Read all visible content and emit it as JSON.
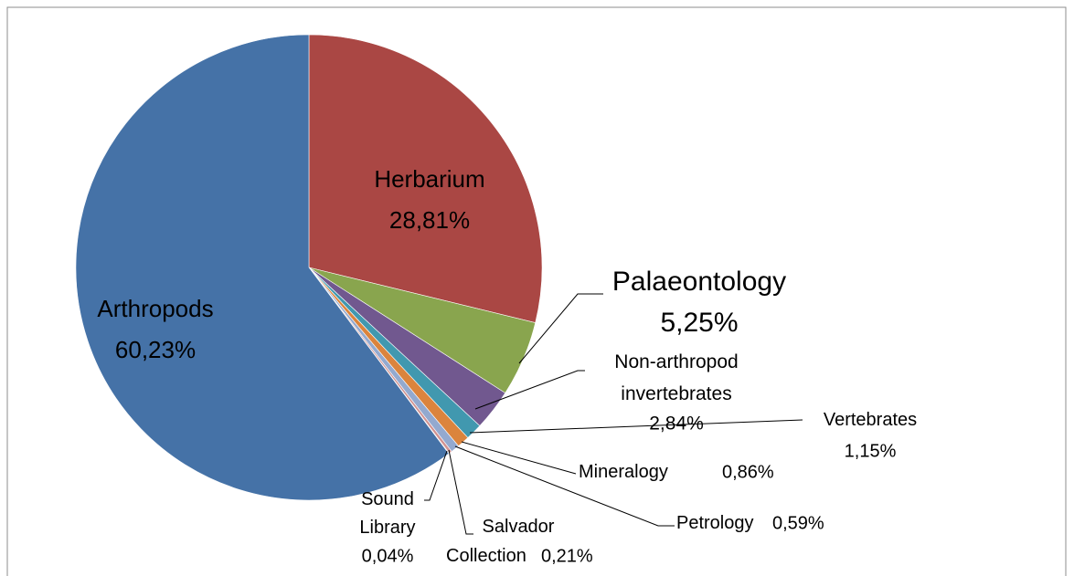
{
  "chart_data": {
    "type": "pie",
    "categories": [
      "Herbarium",
      "Palaeontology",
      "Non-arthropod invertebrates",
      "Vertebrates",
      "Mineralogy",
      "Petrology",
      "Salvador Collection",
      "Sound Library",
      "Arthropods"
    ],
    "values": [
      28.81,
      5.25,
      2.84,
      1.15,
      0.86,
      0.59,
      0.21,
      0.04,
      60.23
    ],
    "value_labels": [
      "28,81%",
      "5,25%",
      "2,84%",
      "1,15%",
      "0,86%",
      "0,59%",
      "0,21%",
      "0,04%",
      "60,23%"
    ],
    "colors": [
      "#aa4744",
      "#89a54e",
      "#71588f",
      "#4198af",
      "#db843d",
      "#93a9cf",
      "#d19392",
      "#b9cd96",
      "#4572a7"
    ]
  }
}
